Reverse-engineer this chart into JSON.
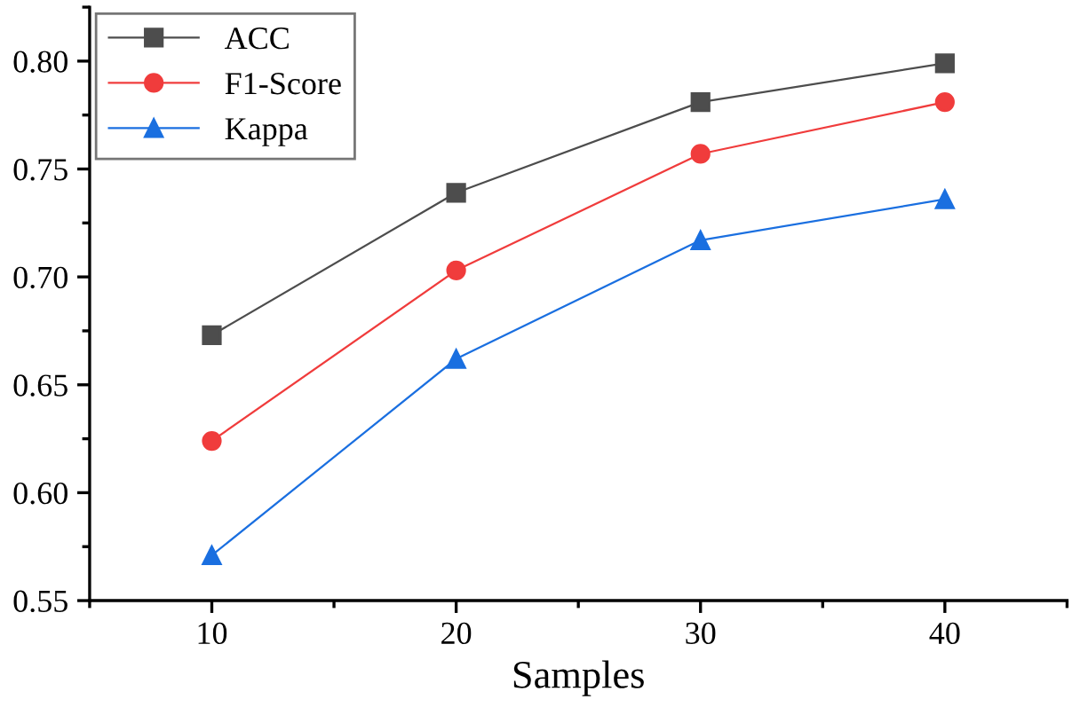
{
  "chart_data": {
    "type": "line",
    "xlabel": "Samples",
    "x": [
      10,
      20,
      30,
      40
    ],
    "series": [
      {
        "name": "ACC",
        "color": "#4d4d4d",
        "values": [
          0.673,
          0.739,
          0.781,
          0.799
        ],
        "marker": "square"
      },
      {
        "name": "F1-Score",
        "color": "#f03c3c",
        "values": [
          0.624,
          0.703,
          0.757,
          0.781
        ],
        "marker": "circle"
      },
      {
        "name": "Kappa",
        "color": "#1a6fe0",
        "values": [
          0.571,
          0.662,
          0.717,
          0.736
        ],
        "marker": "triangle"
      }
    ],
    "xlim": [
      5,
      45
    ],
    "xticks": [
      10,
      20,
      30,
      40
    ],
    "ylim": [
      0.55,
      0.825
    ],
    "yticks": [
      0.55,
      {
        "value": 0.6,
        "label": "0.60"
      },
      0.65,
      {
        "value": 0.7,
        "label": "0.70"
      },
      0.75,
      {
        "value": 0.8,
        "label": "0.80"
      }
    ],
    "legend": "top left",
    "grid": false,
    "line_style": "solid"
  }
}
